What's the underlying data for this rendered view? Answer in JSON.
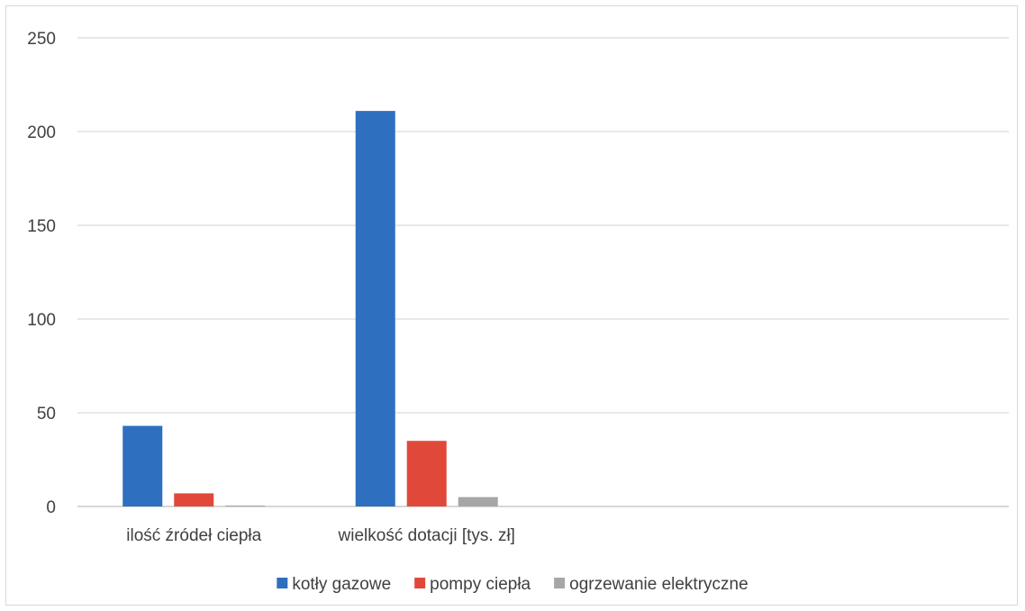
{
  "chart_data": {
    "type": "bar",
    "categories": [
      "ilość źródeł ciepła",
      "wielkość dotacji [tys. zł]",
      "",
      ""
    ],
    "series": [
      {
        "name": "kotły gazowe",
        "values": [
          43,
          211,
          null,
          null
        ],
        "color": "#2e6fbf"
      },
      {
        "name": "pompy ciepła",
        "values": [
          7,
          35,
          null,
          null
        ],
        "color": "#e0493a"
      },
      {
        "name": "ogrzewanie elektryczne",
        "values": [
          0.5,
          5,
          null,
          null
        ],
        "color": "#a6a6a6"
      }
    ],
    "ylim": [
      0,
      250
    ],
    "yticks": [
      "0",
      "50",
      "100",
      "150",
      "200",
      "250"
    ],
    "grid": true,
    "legend_position": "bottom"
  }
}
